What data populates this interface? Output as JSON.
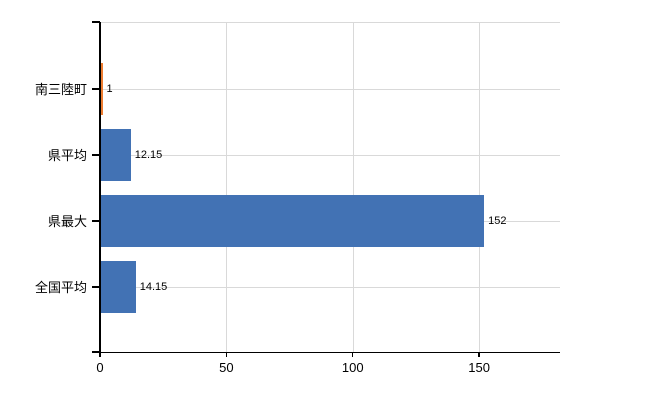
{
  "chart_data": {
    "type": "bar",
    "orientation": "horizontal",
    "title": "",
    "categories": [
      "南三陸町",
      "県平均",
      "県最大",
      "全国平均"
    ],
    "values": [
      1,
      12.15,
      152,
      14.15
    ],
    "value_labels": [
      "1",
      "12.15",
      "152",
      "14.15"
    ],
    "bar_colors": [
      "#ED7D31",
      "#4272B4",
      "#4272B4",
      "#4272B4"
    ],
    "x_axis": {
      "tick_values": [
        0,
        50,
        100,
        150
      ],
      "tick_labels": [
        "0",
        "50",
        "100",
        "150"
      ],
      "range": [
        0,
        182
      ]
    },
    "y_axis": {
      "tick_labels": [
        "南三陸町",
        "県平均",
        "県最大",
        "全国平均"
      ]
    },
    "grid": {
      "horizontal": true,
      "vertical": true
    },
    "legend": {
      "visible": false
    }
  },
  "colors": {
    "background": "#ffffff",
    "axis": "#000000",
    "grid": "#d9d9d9",
    "text": "#000000",
    "highlight_bar": "#ED7D31",
    "default_bar": "#4272B4"
  }
}
